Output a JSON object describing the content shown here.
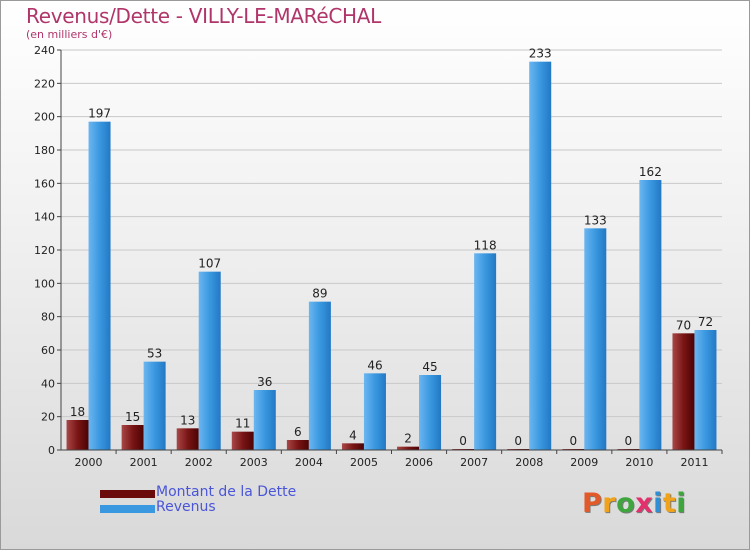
{
  "chart_data": {
    "type": "bar",
    "title": "Revenus/Dette - VILLY-LE-MARéCHAL",
    "subtitle": "(en milliers d'€)",
    "categories": [
      "2000",
      "2001",
      "2002",
      "2003",
      "2004",
      "2005",
      "2006",
      "2007",
      "2008",
      "2009",
      "2010",
      "2011"
    ],
    "series": [
      {
        "name": "Montant de la Dette",
        "color": "#6b0a0a",
        "values": [
          18,
          15,
          13,
          11,
          6,
          4,
          2,
          0,
          0,
          0,
          0,
          70
        ]
      },
      {
        "name": "Revenus",
        "color": "#3a98e0",
        "values": [
          197,
          53,
          107,
          36,
          89,
          46,
          45,
          118,
          233,
          133,
          162,
          72
        ]
      }
    ],
    "ylim": [
      0,
      240
    ],
    "yticks": [
      0,
      20,
      40,
      60,
      80,
      100,
      120,
      140,
      160,
      180,
      200,
      220,
      240
    ],
    "grid": true,
    "legend": "bottom-left"
  },
  "logo": {
    "letters": [
      "P",
      "r",
      "o",
      "x",
      "i",
      "t",
      "i"
    ],
    "colors": [
      "#e35a2a",
      "#f0a21a",
      "#3fa53f",
      "#e2316d",
      "#2f8fd6",
      "#f0a21a",
      "#3fa53f"
    ]
  }
}
